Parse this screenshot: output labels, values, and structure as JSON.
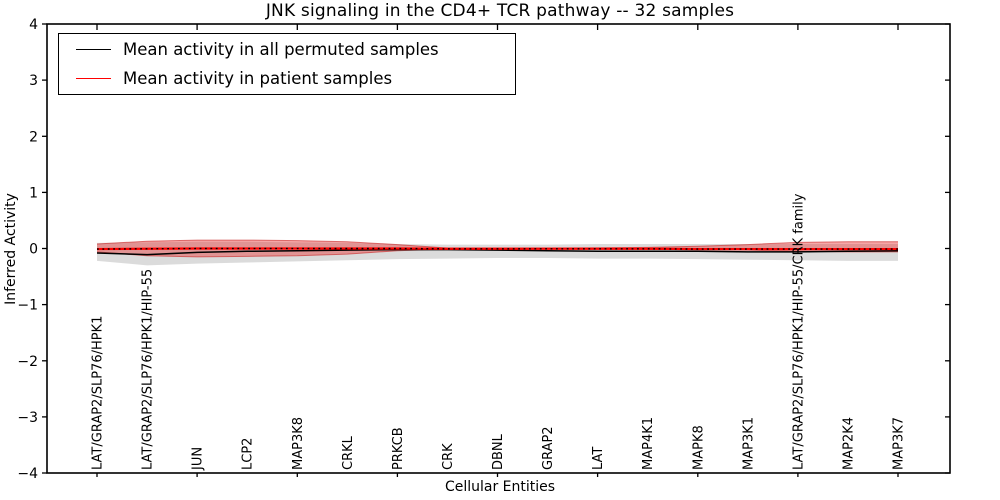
{
  "title": "JNK signaling in the CD4+ TCR pathway -- 32 samples",
  "legend": {
    "entries": [
      {
        "label": "Mean activity in all permuted samples",
        "color": "#000000"
      },
      {
        "label": "Mean activity in patient samples",
        "color": "#ff0000"
      }
    ]
  },
  "axes": {
    "xlabel": "Cellular Entities",
    "ylabel": "Inferred Activity",
    "ylim": [
      -4,
      4
    ],
    "yticks": [
      4,
      3,
      2,
      1,
      0,
      -1,
      -2,
      -3,
      -4
    ],
    "grid": false,
    "frame": true
  },
  "chart_data": {
    "type": "line",
    "title": "JNK signaling in the CD4+ TCR pathway -- 32 samples",
    "xlabel": "Cellular Entities",
    "ylabel": "Inferred Activity",
    "ylim": [
      -4,
      4
    ],
    "legend_position": "upper left",
    "categories": [
      "LAT/GRAP2/SLP76/HPK1",
      "LAT/GRAP2/SLP76/HPK1/HIP-55",
      "JUN",
      "LCP2",
      "MAP3K8",
      "CRKL",
      "PRKCB",
      "CRK",
      "DBNL",
      "GRAP2",
      "LAT",
      "MAP4K1",
      "MAPK8",
      "MAP3K1",
      "LAT/GRAP2/SLP76/HPK1/HIP-55/CRK family",
      "MAP2K4",
      "MAP3K7"
    ],
    "series": [
      {
        "name": "Mean activity in all permuted samples",
        "color": "#000000",
        "line_style": "solid",
        "values": [
          -0.08,
          -0.11,
          -0.07,
          -0.05,
          -0.04,
          -0.03,
          -0.02,
          -0.02,
          -0.03,
          -0.04,
          -0.05,
          -0.05,
          -0.05,
          -0.06,
          -0.06,
          -0.05,
          -0.04
        ],
        "band_upper": [
          0.1,
          0.11,
          0.12,
          0.12,
          0.11,
          0.1,
          0.08,
          0.07,
          0.07,
          0.07,
          0.08,
          0.08,
          0.08,
          0.08,
          0.08,
          0.08,
          0.08
        ],
        "band_lower": [
          -0.22,
          -0.3,
          -0.27,
          -0.25,
          -0.23,
          -0.21,
          -0.19,
          -0.18,
          -0.17,
          -0.17,
          -0.18,
          -0.18,
          -0.19,
          -0.2,
          -0.21,
          -0.22,
          -0.22
        ],
        "band_color": "rgba(0,0,0,0.14)"
      },
      {
        "name": "Mean activity in patient samples",
        "color": "#ff0000",
        "line_style": "solid",
        "values": [
          -0.01,
          -0.005,
          0,
          0,
          0,
          0,
          0,
          -0.005,
          -0.005,
          -0.005,
          -0.005,
          -0.005,
          -0.01,
          -0.01,
          -0.01,
          -0.01,
          -0.01
        ],
        "band_upper": [
          0.08,
          0.13,
          0.15,
          0.15,
          0.14,
          0.12,
          0.07,
          0.01,
          0.01,
          0.01,
          0.012,
          0.02,
          0.04,
          0.07,
          0.11,
          0.12,
          0.12
        ],
        "band_lower": [
          -0.06,
          -0.13,
          -0.15,
          -0.14,
          -0.13,
          -0.1,
          -0.04,
          -0.01,
          -0.01,
          -0.01,
          -0.012,
          -0.015,
          -0.02,
          -0.03,
          -0.05,
          -0.06,
          -0.06
        ],
        "band_color": "rgba(233,60,60,0.45)",
        "band_edge_color": "rgba(200,35,35,0.6)",
        "overlay": {
          "style": "dotted",
          "color": "#000000",
          "note": "black dotted line drawn on top of the red mean line"
        }
      }
    ]
  }
}
